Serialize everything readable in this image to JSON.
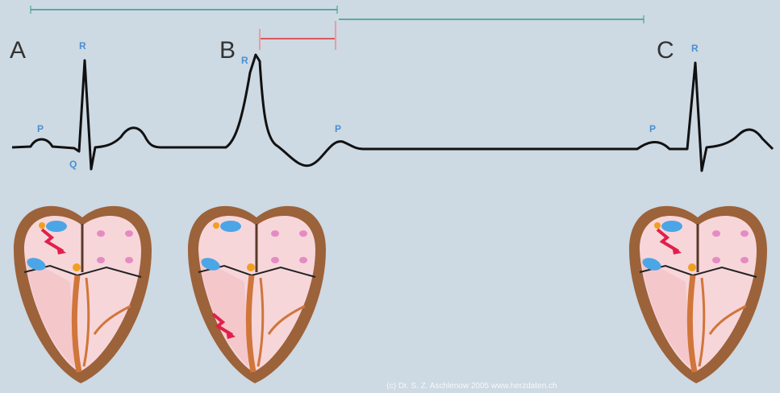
{
  "beats": [
    {
      "label": "A",
      "r": "R",
      "p": "P",
      "q": "Q"
    },
    {
      "label": "B",
      "r": "R",
      "p": "P"
    },
    {
      "label": "C",
      "r": "R",
      "p": "P"
    }
  ],
  "credit": "(c) Dr. S. Z. Aschlenow 2005 www.herzdaten.ch"
}
